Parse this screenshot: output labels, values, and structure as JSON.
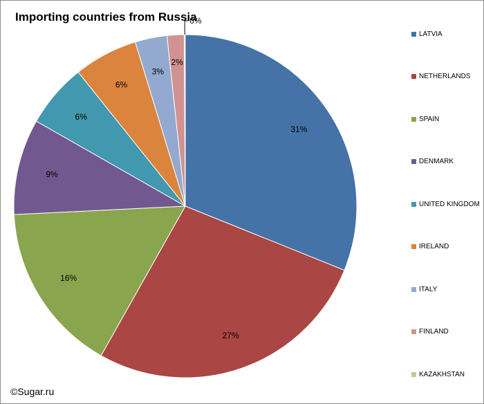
{
  "chart_data": {
    "type": "pie",
    "title": "Importing countries from Russia",
    "slices": [
      {
        "name": "LATVIA",
        "value": 31,
        "label": "31%",
        "color": "#4572a7"
      },
      {
        "name": "NETHERLANDS",
        "value": 27,
        "label": "27%",
        "color": "#aa4643"
      },
      {
        "name": "SPAIN",
        "value": 16,
        "label": "16%",
        "color": "#89a54e"
      },
      {
        "name": "DENMARK",
        "value": 9,
        "label": "9%",
        "color": "#71588f"
      },
      {
        "name": "UNITED KINGDOM",
        "value": 6,
        "label": "6%",
        "color": "#4198af"
      },
      {
        "name": "IRELAND",
        "value": 6,
        "label": "6%",
        "color": "#db843d"
      },
      {
        "name": "ITALY",
        "value": 3,
        "label": "3%",
        "color": "#93a9cf"
      },
      {
        "name": "FINLAND",
        "value": 1.6,
        "label": "2%",
        "color": "#d19392"
      },
      {
        "name": "KAZAKHSTAN",
        "value": 0.1,
        "label": "0%",
        "color": "#b9cd96"
      }
    ],
    "legend_position": "right"
  },
  "footer": {
    "copyright": "©Sugar.ru"
  }
}
